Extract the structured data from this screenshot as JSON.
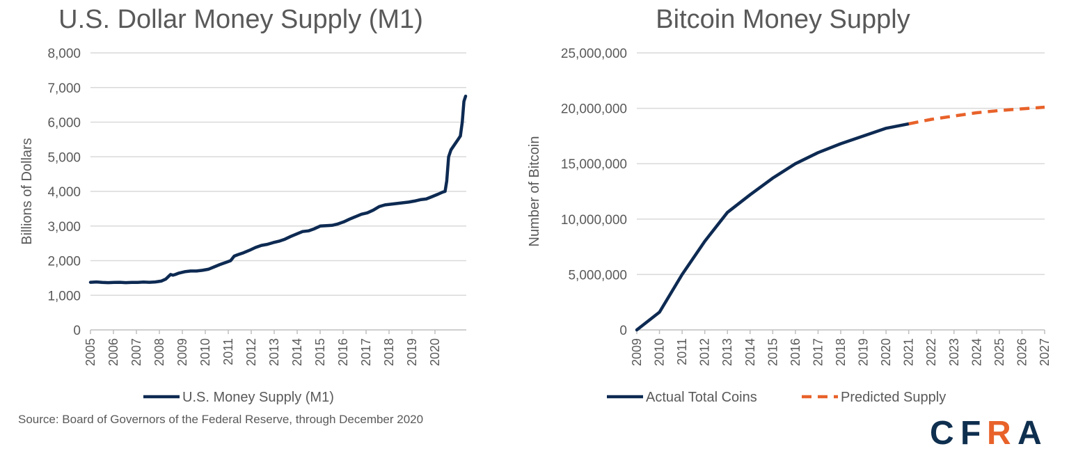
{
  "source_text": "Source: Board of Governors of the Federal Reserve, through December 2020",
  "logo": {
    "text": "CFRA",
    "colors": {
      "dark": "#0f2f4f",
      "orange": "#e8622a"
    }
  },
  "colors": {
    "navy": "#0d2a52",
    "orange": "#e8622a",
    "grid": "#d9d9d9",
    "text": "#595959"
  },
  "chart_data": [
    {
      "type": "line",
      "title": "U.S. Dollar Money Supply (M1)",
      "xlabel": "",
      "ylabel": "Billions of Dollars",
      "ylim": [
        0,
        8000
      ],
      "yticks": [
        0,
        1000,
        2000,
        3000,
        4000,
        5000,
        6000,
        7000,
        8000
      ],
      "ytick_labels": [
        "0",
        "1,000",
        "2,000",
        "3,000",
        "4,000",
        "5,000",
        "6,000",
        "7,000",
        "8,000"
      ],
      "x_tick_labels": [
        "2005",
        "2006",
        "2007",
        "2008",
        "2009",
        "2010",
        "2011",
        "2012",
        "2013",
        "2014",
        "2015",
        "2016",
        "2017",
        "2018",
        "2019",
        "2020"
      ],
      "xlim": [
        2005.0,
        2020.95
      ],
      "grid": true,
      "legend_position": "bottom",
      "series": [
        {
          "name": "U.S. Money Supply (M1)",
          "color": "#0d2a52",
          "dash": false,
          "x": [
            2005.0,
            2005.25,
            2005.5,
            2005.75,
            2006.0,
            2006.25,
            2006.5,
            2006.75,
            2007.0,
            2007.25,
            2007.5,
            2007.75,
            2008.0,
            2008.2,
            2008.4,
            2008.5,
            2008.6,
            2008.75,
            2009.0,
            2009.25,
            2009.5,
            2009.75,
            2010.0,
            2010.25,
            2010.5,
            2010.75,
            2010.95,
            2011.1,
            2011.25,
            2011.5,
            2011.75,
            2012.0,
            2012.25,
            2012.5,
            2012.75,
            2013.0,
            2013.25,
            2013.5,
            2013.75,
            2014.0,
            2014.25,
            2014.5,
            2014.75,
            2015.0,
            2015.25,
            2015.5,
            2015.75,
            2016.0,
            2016.25,
            2016.5,
            2016.75,
            2017.0,
            2017.25,
            2017.5,
            2017.75,
            2018.0,
            2018.25,
            2018.5,
            2018.75,
            2019.0,
            2019.25,
            2019.5,
            2019.75,
            2019.95,
            2020.05,
            2020.12,
            2020.2,
            2020.3,
            2020.45,
            2020.6,
            2020.7,
            2020.78,
            2020.85,
            2020.92
          ],
          "y": [
            1375,
            1385,
            1370,
            1365,
            1370,
            1375,
            1365,
            1370,
            1370,
            1380,
            1375,
            1385,
            1410,
            1470,
            1600,
            1580,
            1600,
            1640,
            1680,
            1700,
            1700,
            1720,
            1750,
            1820,
            1890,
            1950,
            2000,
            2130,
            2170,
            2230,
            2300,
            2380,
            2440,
            2470,
            2520,
            2560,
            2620,
            2700,
            2770,
            2840,
            2860,
            2920,
            3000,
            3010,
            3020,
            3060,
            3120,
            3200,
            3270,
            3340,
            3380,
            3460,
            3560,
            3610,
            3630,
            3650,
            3670,
            3690,
            3720,
            3760,
            3780,
            3850,
            3920,
            3980,
            4000,
            4300,
            5000,
            5200,
            5350,
            5500,
            5600,
            6000,
            6600,
            6750
          ]
        }
      ]
    },
    {
      "type": "line",
      "title": "Bitcoin Money Supply",
      "xlabel": "",
      "ylabel": "Number of Bitcoin",
      "ylim": [
        0,
        25000000
      ],
      "yticks": [
        0,
        5000000,
        10000000,
        15000000,
        20000000,
        25000000
      ],
      "ytick_labels": [
        "0",
        "5,000,000",
        "10,000,000",
        "15,000,000",
        "20,000,000",
        "25,000,000"
      ],
      "x_tick_labels": [
        "2009",
        "2010",
        "2011",
        "2012",
        "2013",
        "2014",
        "2015",
        "2016",
        "2017",
        "2018",
        "2019",
        "2020",
        "2021",
        "2022",
        "2023",
        "2024",
        "2025",
        "2026",
        "2027"
      ],
      "xlim": [
        2009,
        2027
      ],
      "grid": true,
      "legend_position": "bottom",
      "series": [
        {
          "name": "Actual Total Coins",
          "color": "#0d2a52",
          "dash": false,
          "x": [
            2009,
            2010,
            2011,
            2012,
            2013,
            2014,
            2015,
            2016,
            2017,
            2018,
            2019,
            2020,
            2021
          ],
          "y": [
            0,
            1600000,
            5000000,
            8000000,
            10600000,
            12200000,
            13700000,
            15000000,
            16000000,
            16800000,
            17500000,
            18200000,
            18600000
          ]
        },
        {
          "name": "Predicted Supply",
          "color": "#e8622a",
          "dash": true,
          "x": [
            2021,
            2022,
            2023,
            2024,
            2025,
            2026,
            2027
          ],
          "y": [
            18600000,
            19000000,
            19300000,
            19600000,
            19800000,
            19950000,
            20100000
          ]
        }
      ]
    }
  ]
}
